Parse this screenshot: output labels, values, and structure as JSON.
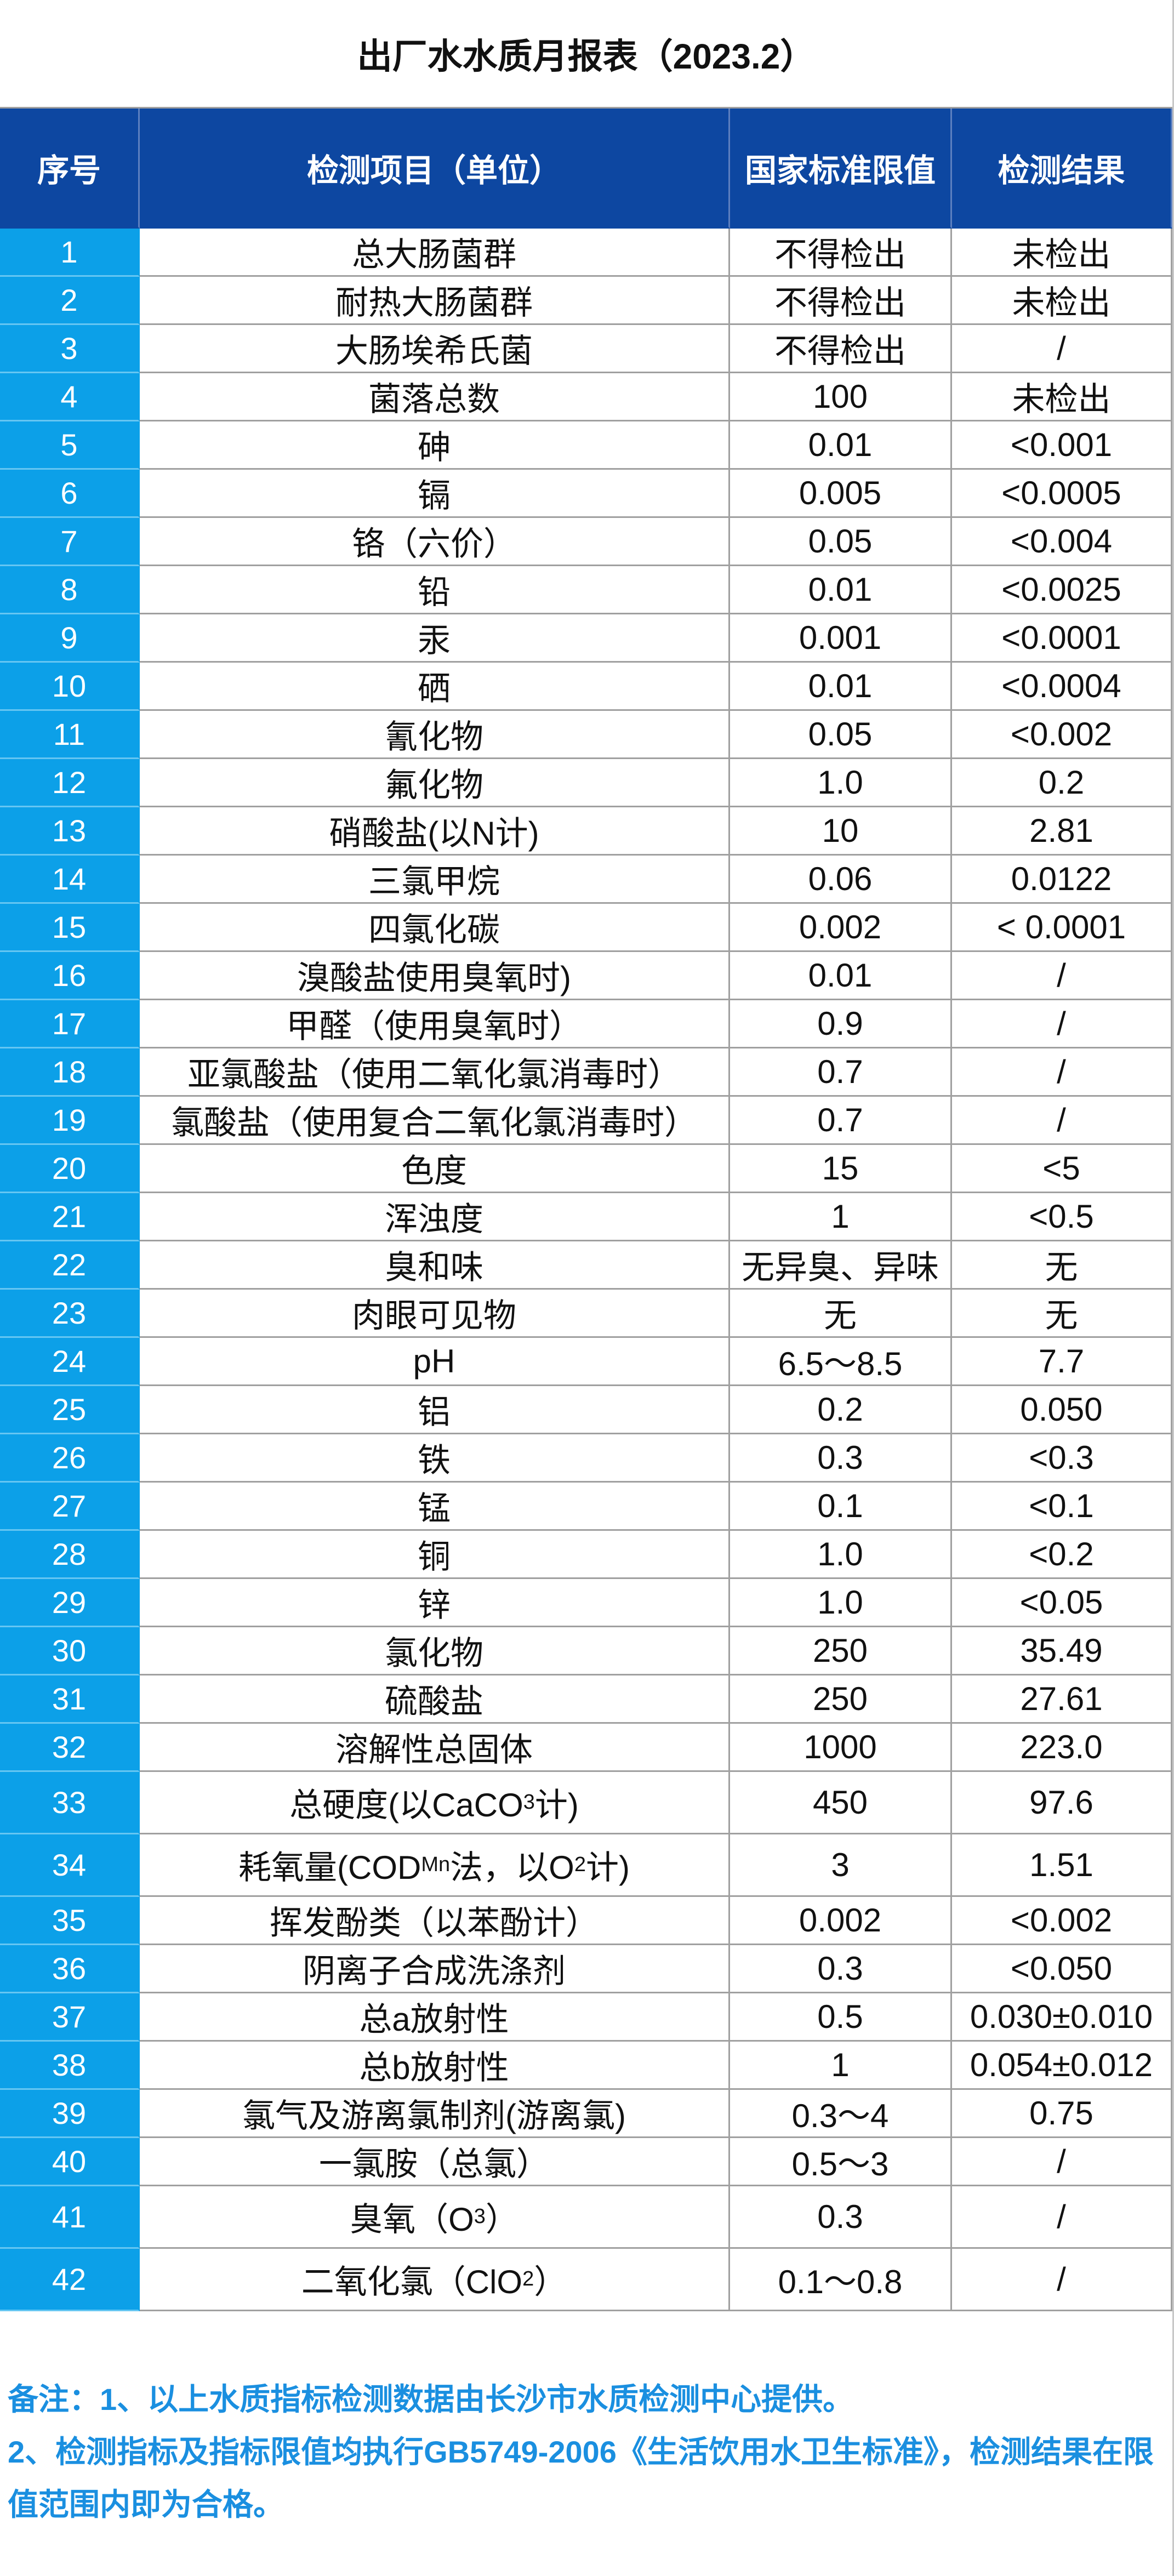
{
  "title": "出厂水水质月报表（2023.2）",
  "table": {
    "header": [
      "序号",
      "检测项目（单位）",
      "国家标准限值",
      "检测结果"
    ],
    "rows": [
      [
        "1",
        "总大肠菌群",
        "不得检出",
        "未检出"
      ],
      [
        "2",
        "耐热大肠菌群",
        "不得检出",
        "未检出"
      ],
      [
        "3",
        "大肠埃希氏菌",
        "不得检出",
        "/"
      ],
      [
        "4",
        "菌落总数",
        "100",
        "未检出"
      ],
      [
        "5",
        "砷",
        "0.01",
        "<0.001"
      ],
      [
        "6",
        "镉",
        "0.005",
        "<0.0005"
      ],
      [
        "7",
        "铬（六价）",
        "0.05",
        "<0.004"
      ],
      [
        "8",
        "铅",
        "0.01",
        "<0.0025"
      ],
      [
        "9",
        "汞",
        "0.001",
        "<0.0001"
      ],
      [
        "10",
        "硒",
        "0.01",
        "<0.0004"
      ],
      [
        "11",
        "氰化物",
        "0.05",
        "<0.002"
      ],
      [
        "12",
        "氟化物",
        "1.0",
        "0.2"
      ],
      [
        "13",
        "硝酸盐(以N计)",
        "10",
        "2.81"
      ],
      [
        "14",
        "三氯甲烷",
        "0.06",
        "0.0122"
      ],
      [
        "15",
        "四氯化碳",
        "0.002",
        "< 0.0001"
      ],
      [
        "16",
        "溴酸盐使用臭氧时)",
        "0.01",
        "/"
      ],
      [
        "17",
        "甲醛（使用臭氧时）",
        "0.9",
        "/"
      ],
      [
        "18",
        "亚氯酸盐（使用二氧化氯消毒时）",
        "0.7",
        "/"
      ],
      [
        "19",
        "氯酸盐（使用复合二氧化氯消毒时）",
        "0.7",
        "/"
      ],
      [
        "20",
        "色度",
        "15",
        "<5"
      ],
      [
        "21",
        "浑浊度",
        "1",
        "<0.5"
      ],
      [
        "22",
        "臭和味",
        "无异臭、异味",
        "无"
      ],
      [
        "23",
        "肉眼可见物",
        "无",
        "无"
      ],
      [
        "24",
        "pH",
        "6.5～8.5",
        "7.7"
      ],
      [
        "25",
        "铝",
        "0.2",
        "0.050"
      ],
      [
        "26",
        "铁",
        "0.3",
        "<0.3"
      ],
      [
        "27",
        "锰",
        "0.1",
        "<0.1"
      ],
      [
        "28",
        "铜",
        "1.0",
        "<0.2"
      ],
      [
        "29",
        "锌",
        "1.0",
        "<0.05"
      ],
      [
        "30",
        "氯化物",
        "250",
        "35.49"
      ],
      [
        "31",
        "硫酸盐",
        "250",
        "27.61"
      ],
      [
        "32",
        "溶解性总固体",
        "1000",
        "223.0"
      ],
      [
        "33",
        [
          "总硬度(以CaCO",
          "3",
          "计)"
        ],
        "450",
        "97.6"
      ],
      [
        "34",
        [
          "耗氧量(COD",
          "Mn",
          "法，以O",
          "2",
          "计)"
        ],
        "3",
        "1.51"
      ],
      [
        "35",
        "挥发酚类（以苯酚计）",
        "0.002",
        "<0.002"
      ],
      [
        "36",
        "阴离子合成洗涤剂",
        "0.3",
        "<0.050"
      ],
      [
        "37",
        "总a放射性",
        "0.5",
        "0.030±0.010"
      ],
      [
        "38",
        "总b放射性",
        "1",
        "0.054±0.012"
      ],
      [
        "39",
        "氯气及游离氯制剂(游离氯)",
        "0.3～4",
        "0.75"
      ],
      [
        "40",
        "一氯胺（总氯）",
        "0.5～3",
        "/"
      ],
      [
        "41",
        [
          "臭氧（O",
          "3",
          "）"
        ],
        "0.3",
        "/"
      ],
      [
        "42",
        [
          "二氧化氯（ClO",
          "2",
          "）"
        ],
        "0.1～0.8",
        "/"
      ]
    ]
  },
  "notes": [
    "备注：1、以上水质指标检测数据由长沙市水质检测中心提供。",
    "2、检测指标及指标限值均执行GB5749-2006《生活饮用水卫生标准》，检测结果在限值范围内即为合格。"
  ]
}
